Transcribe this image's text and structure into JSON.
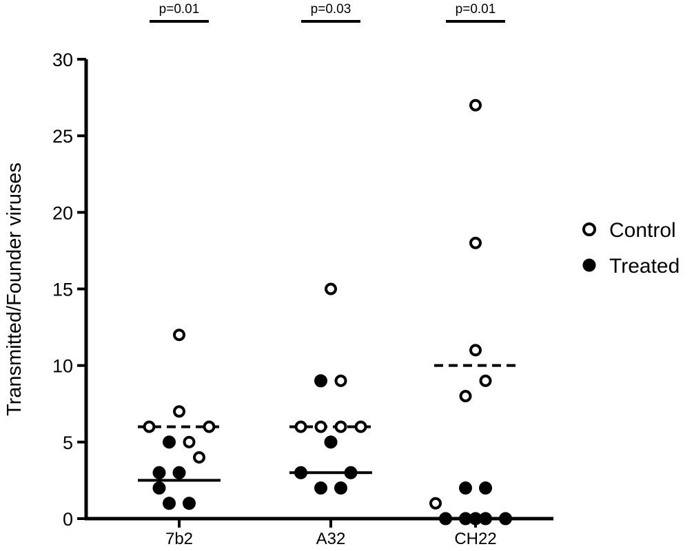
{
  "chart_data": {
    "type": "scatter",
    "title": "",
    "xlabel": "",
    "ylabel": "Transmitted/Founder viruses",
    "ylim": [
      0,
      30
    ],
    "yticks": [
      0,
      5,
      10,
      15,
      20,
      25,
      30
    ],
    "ytick_labels": [
      "0",
      "5",
      "10",
      "15",
      "20",
      "25",
      "30"
    ],
    "categories": [
      "7b2",
      "A32",
      "CH22"
    ],
    "grid": false,
    "legend_position": "right",
    "series": [
      {
        "name": "Control",
        "marker": "open-circle",
        "values": [
          [
            6,
            6,
            12,
            7,
            5,
            4
          ],
          [
            6,
            6,
            6,
            6,
            15,
            9
          ],
          [
            1,
            27,
            18,
            11,
            8,
            9
          ]
        ],
        "x_offsets": [
          [
            -1.5,
            1.5,
            0,
            0,
            0.5,
            1
          ],
          [
            -1.5,
            -0.5,
            0.5,
            1.5,
            0,
            0.5
          ],
          [
            -2,
            0,
            0,
            0,
            -0.5,
            0.5
          ]
        ],
        "median": [
          6,
          6,
          10
        ],
        "median_style": "dashed"
      },
      {
        "name": "Treated",
        "marker": "filled-circle",
        "values": [
          [
            5,
            3,
            3,
            2,
            1,
            1
          ],
          [
            9,
            5,
            3,
            3,
            2,
            2
          ],
          [
            2,
            2,
            0,
            0,
            0,
            0,
            0
          ]
        ],
        "x_offsets": [
          [
            -0.5,
            -1,
            0,
            -1,
            -0.5,
            0.5
          ],
          [
            -0.5,
            0,
            -1.5,
            1,
            -0.5,
            0.5
          ],
          [
            -0.5,
            0.5,
            -1.5,
            -0.5,
            0.5,
            1.5,
            0
          ]
        ],
        "median": [
          2.5,
          3,
          null
        ],
        "median_style": "solid"
      }
    ],
    "annotations": [
      {
        "category": "7b2",
        "text": "p=0.01"
      },
      {
        "category": "A32",
        "text": "p=0.03"
      },
      {
        "category": "CH22",
        "text": "p=0.01"
      }
    ]
  }
}
